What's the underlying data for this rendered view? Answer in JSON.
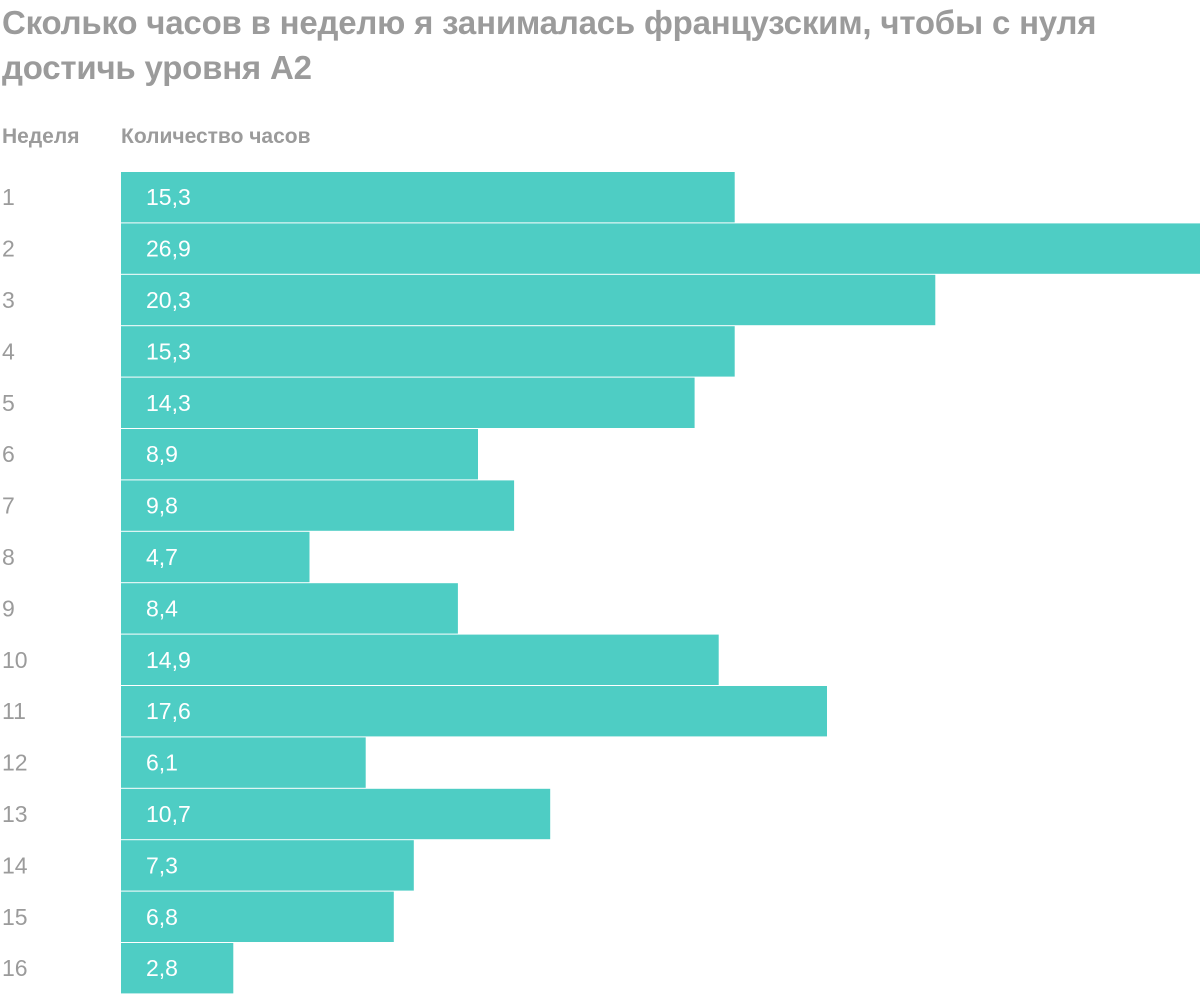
{
  "chart_data": {
    "type": "bar",
    "orientation": "horizontal",
    "title": "Сколько часов в неделю я занималась французским, чтобы с нуля достичь уровня А2",
    "category_header": "Неделя",
    "value_header": "Количество часов",
    "categories": [
      "1",
      "2",
      "3",
      "4",
      "5",
      "6",
      "7",
      "8",
      "9",
      "10",
      "11",
      "12",
      "13",
      "14",
      "15",
      "16"
    ],
    "values": [
      15.3,
      26.9,
      20.3,
      15.3,
      14.3,
      8.9,
      9.8,
      4.7,
      8.4,
      14.9,
      17.6,
      6.1,
      10.7,
      7.3,
      6.8,
      2.8
    ],
    "value_labels": [
      "15,3",
      "26,9",
      "20,3",
      "15,3",
      "14,3",
      "8,9",
      "9,8",
      "4,7",
      "8,4",
      "14,9",
      "17,6",
      "6,1",
      "10,7",
      "7,3",
      "6,8",
      "2,8"
    ],
    "bar_color": "#4ecdc4",
    "label_color": "#9b9b9b",
    "value_label_color": "#ffffff",
    "xlim": [
      0,
      26.9
    ],
    "grid": false,
    "legend": "none"
  }
}
